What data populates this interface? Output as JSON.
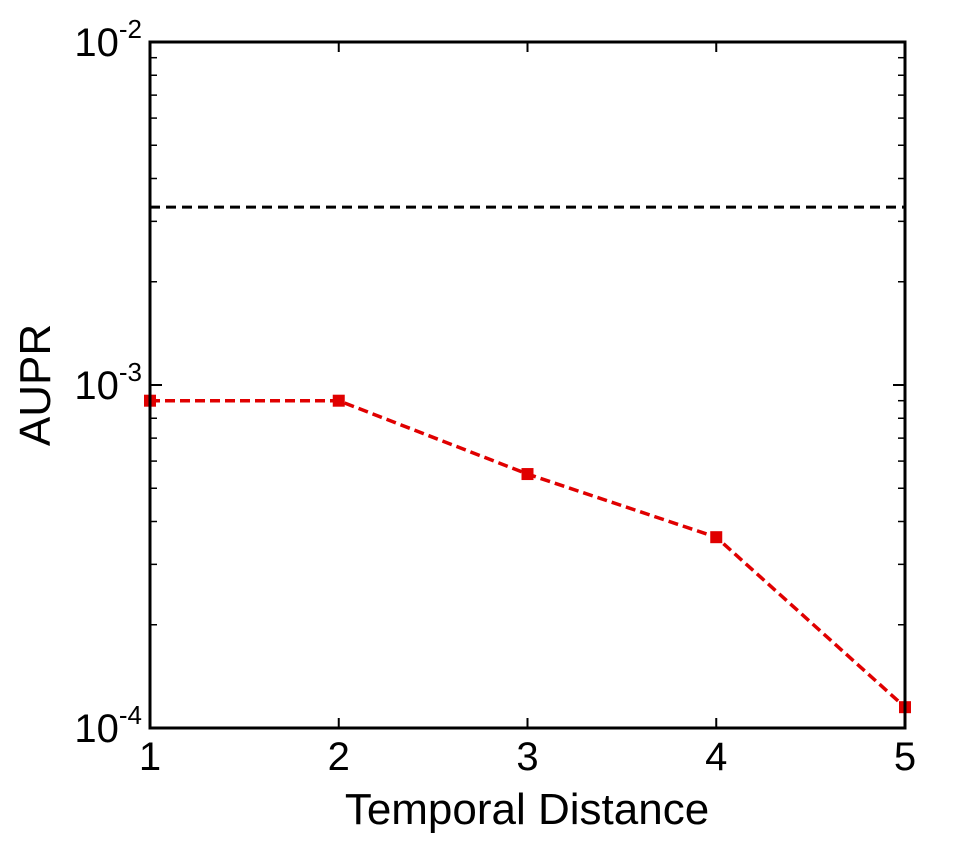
{
  "chart_data": {
    "type": "line",
    "title": "",
    "xlabel": "Temporal Distance",
    "ylabel": "AUPR",
    "x": [
      1,
      2,
      3,
      4,
      5
    ],
    "xlim": [
      1,
      5
    ],
    "ylim": [
      0.0001,
      0.01
    ],
    "yscale": "log",
    "x_ticks": [
      {
        "value": 1,
        "label": "1"
      },
      {
        "value": 2,
        "label": "2"
      },
      {
        "value": 3,
        "label": "3"
      },
      {
        "value": 4,
        "label": "4"
      },
      {
        "value": 5,
        "label": "5"
      }
    ],
    "y_ticks": [
      {
        "value": 0.0001,
        "base": "10",
        "exp": "-4"
      },
      {
        "value": 0.001,
        "base": "10",
        "exp": "-3"
      },
      {
        "value": 0.01,
        "base": "10",
        "exp": "-2"
      }
    ],
    "grid": false,
    "legend": "none",
    "series": [
      {
        "style": "dashed",
        "marker": "square",
        "color": "#e00000",
        "values": [
          0.0009,
          0.0009,
          0.00055,
          0.00036,
          0.000115
        ]
      }
    ],
    "reference_lines": [
      {
        "orientation": "horizontal",
        "value": 0.0033,
        "style": "dashed",
        "color": "#000000"
      }
    ]
  }
}
